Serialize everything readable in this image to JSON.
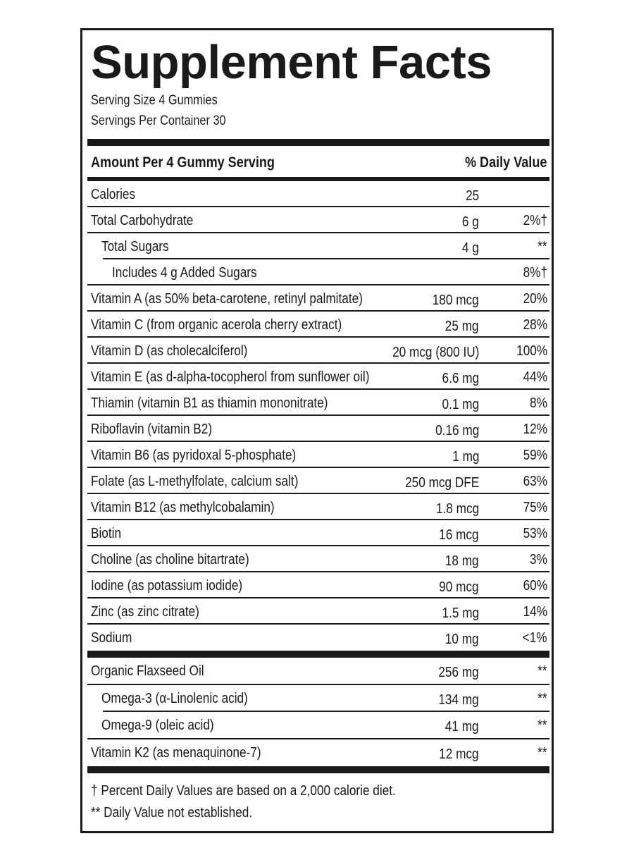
{
  "title": "Supplement Facts",
  "serving_size": "Serving Size 4 Gummies",
  "servings_per_container": "Servings Per Container 30",
  "header": {
    "amount": "Amount Per 4 Gummy Serving",
    "dv": "% Daily Value"
  },
  "section1": [
    {
      "label": "Calories",
      "amount": "25",
      "dv": "",
      "indent": 0
    },
    {
      "label": "Total Carbohydrate",
      "amount": "6 g",
      "dv": "2%†",
      "indent": 0
    },
    {
      "label": "Total Sugars",
      "amount": "4 g",
      "dv": "**",
      "indent": 1
    },
    {
      "label": "Includes 4 g Added Sugars",
      "amount": "",
      "dv": "8%†",
      "indent": 2
    },
    {
      "label": "Vitamin A (as 50% beta-carotene, retinyl palmitate)",
      "amount": "180 mcg",
      "dv": "20%",
      "indent": 0
    },
    {
      "label": "Vitamin C (from organic acerola cherry extract)",
      "amount": "25 mg",
      "dv": "28%",
      "indent": 0
    },
    {
      "label": "Vitamin D (as cholecalciferol)",
      "amount": "20 mcg (800 IU)",
      "dv": "100%",
      "indent": 0
    },
    {
      "label": "Vitamin E (as d-alpha-tocopherol from sunflower oil)",
      "amount": "6.6 mg",
      "dv": "44%",
      "indent": 0
    },
    {
      "label": "Thiamin (vitamin B1 as thiamin mononitrate)",
      "amount": "0.1 mg",
      "dv": "8%",
      "indent": 0
    },
    {
      "label": "Riboflavin (vitamin B2)",
      "amount": "0.16 mg",
      "dv": "12%",
      "indent": 0
    },
    {
      "label": "Vitamin B6 (as pyridoxal 5-phosphate)",
      "amount": "1 mg",
      "dv": "59%",
      "indent": 0
    },
    {
      "label": "Folate (as L-methylfolate, calcium salt)",
      "amount": "250 mcg DFE",
      "dv": "63%",
      "indent": 0
    },
    {
      "label": "Vitamin B12 (as methylcobalamin)",
      "amount": "1.8 mcg",
      "dv": "75%",
      "indent": 0
    },
    {
      "label": "Biotin",
      "amount": "16 mcg",
      "dv": "53%",
      "indent": 0
    },
    {
      "label": "Choline (as choline bitartrate)",
      "amount": "18 mg",
      "dv": "3%",
      "indent": 0
    },
    {
      "label": "Iodine (as potassium iodide)",
      "amount": "90 mcg",
      "dv": "60%",
      "indent": 0
    },
    {
      "label": "Zinc (as zinc citrate)",
      "amount": "1.5 mg",
      "dv": "14%",
      "indent": 0
    },
    {
      "label": "Sodium",
      "amount": "10 mg",
      "dv": "<1%",
      "indent": 0
    }
  ],
  "section2": [
    {
      "label": "Organic Flaxseed Oil",
      "amount": "256 mg",
      "dv": "**",
      "indent": 0
    },
    {
      "label": "Omega-3 (α-Linolenic acid)",
      "amount": "134 mg",
      "dv": "**",
      "indent": 1
    },
    {
      "label": "Omega-9 (oleic acid)",
      "amount": "41 mg",
      "dv": "**",
      "indent": 1
    },
    {
      "label": "Vitamin K2 (as menaquinone-7)",
      "amount": "12 mcg",
      "dv": "**",
      "indent": 0
    }
  ],
  "footnotes": [
    "† Percent Daily Values are based on a 2,000 calorie diet.",
    "** Daily Value not established."
  ]
}
